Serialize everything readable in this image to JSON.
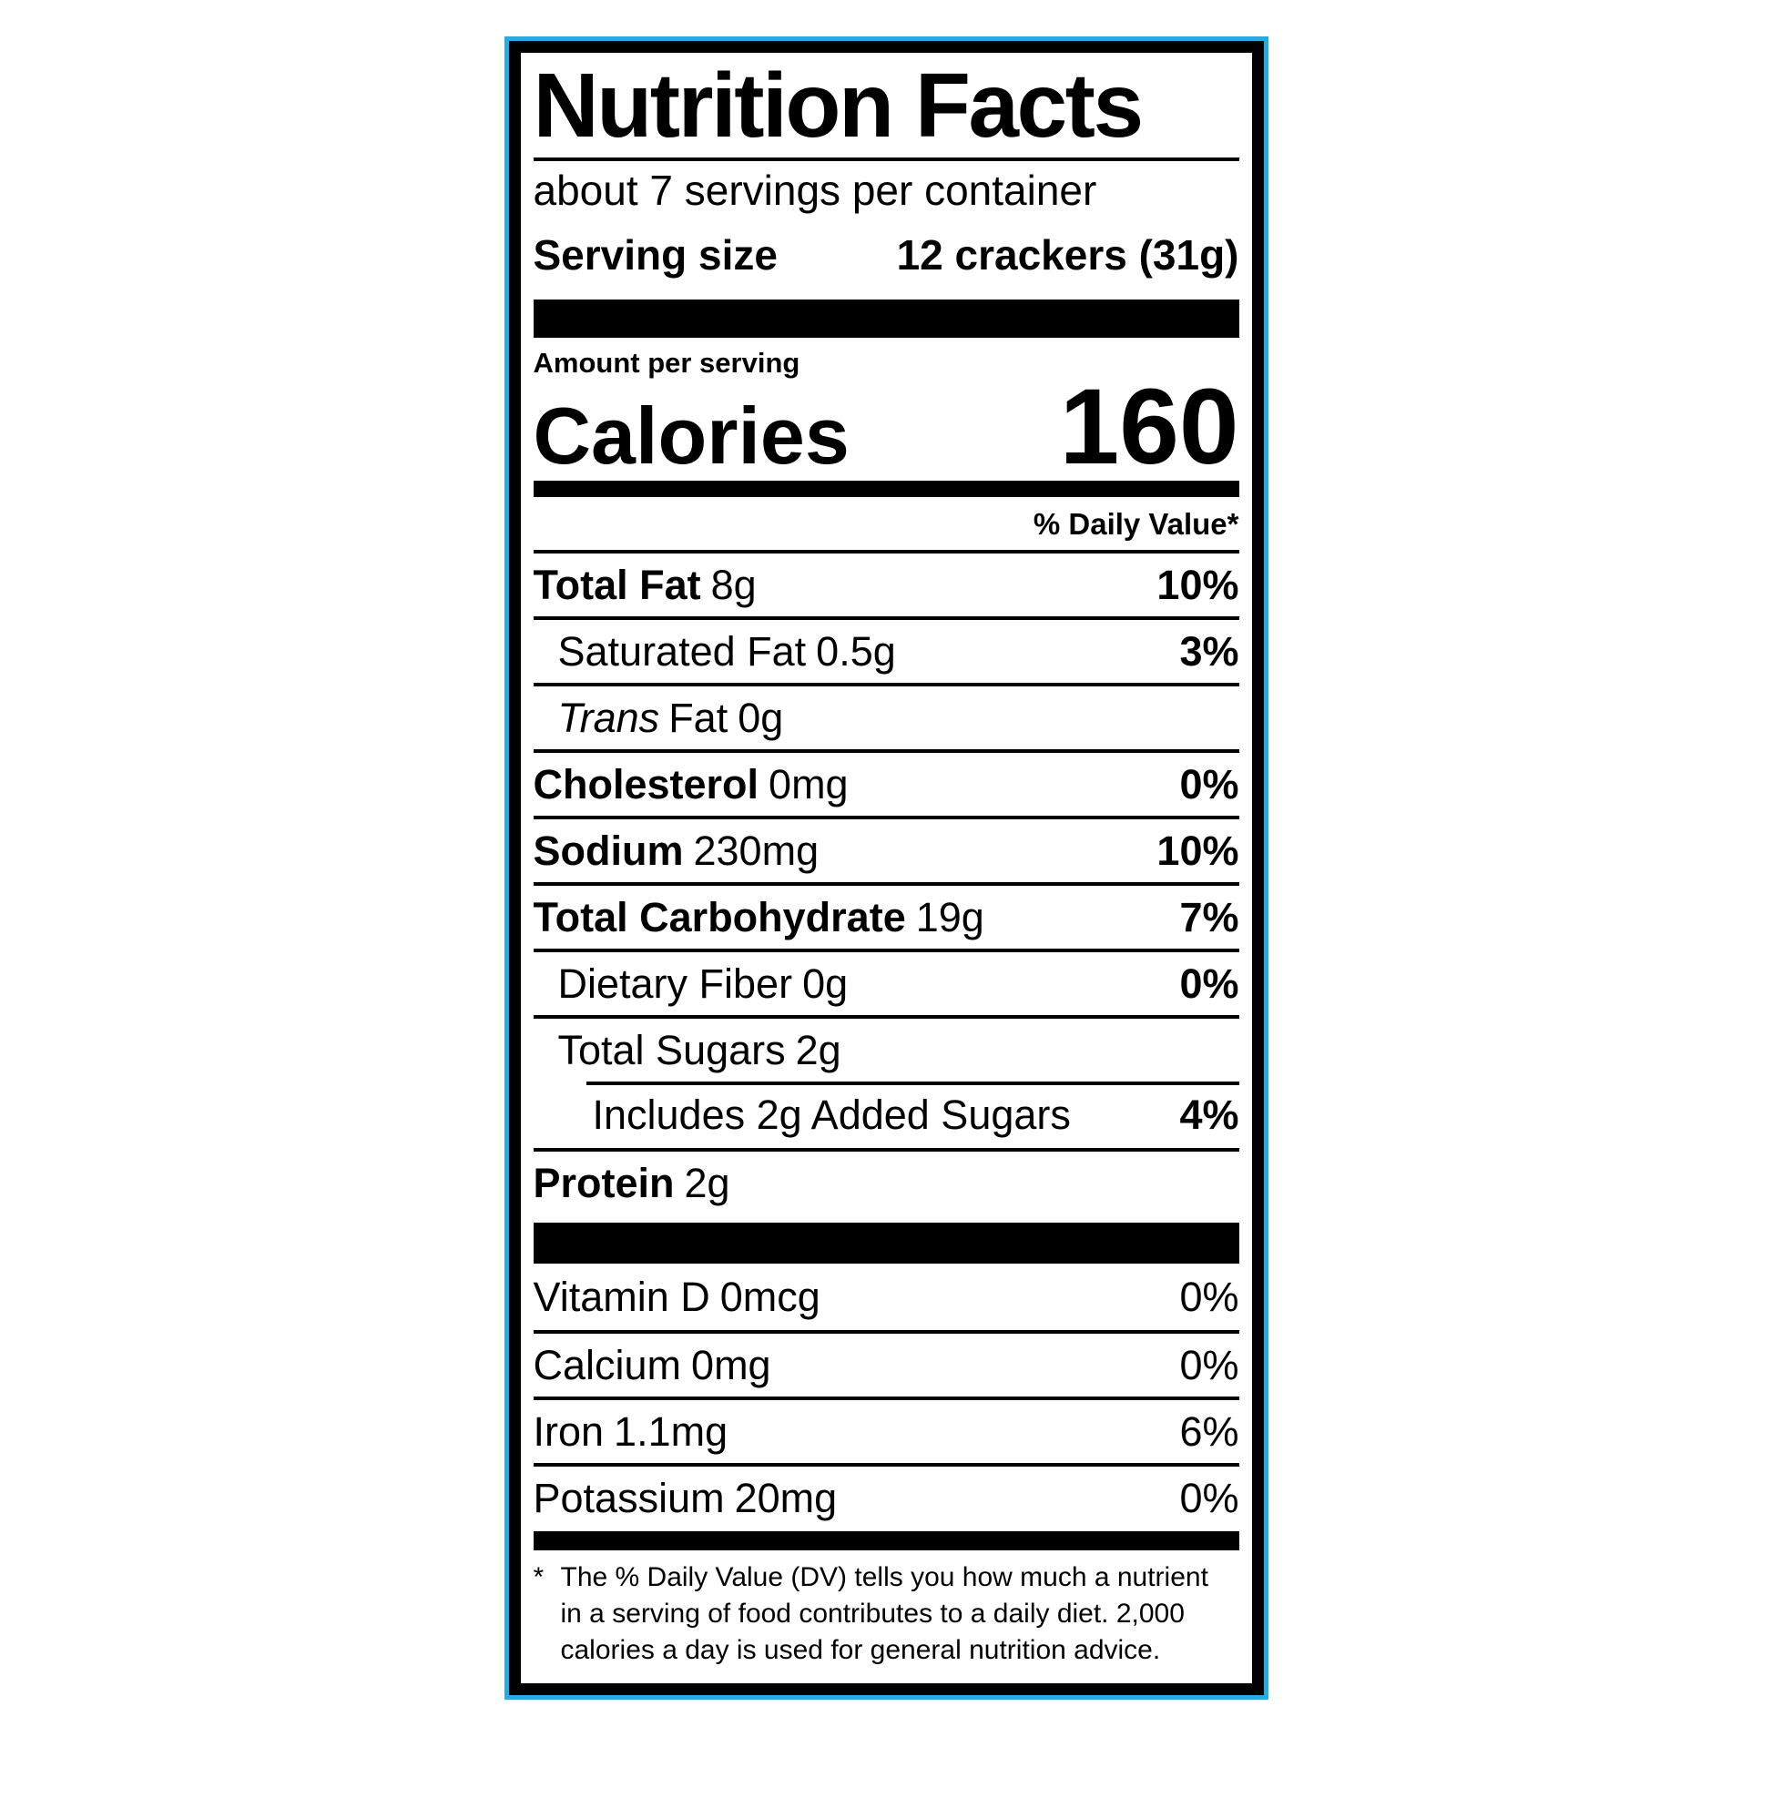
{
  "colors": {
    "accent_border": "#29ABE2",
    "text": "#000000",
    "background": "#FFFFFF"
  },
  "label": {
    "title": "Nutrition Facts",
    "servings_line": "about 7 servings per container",
    "serving_size": {
      "label": "Serving size",
      "value": "12 crackers (31g)"
    },
    "amount_heading": "Amount per serving",
    "calories": {
      "label": "Calories",
      "value": "160"
    },
    "dv_header": "% Daily Value*"
  },
  "rows": [
    {
      "name": "Total Fat",
      "amount": "8g",
      "dv": "10%"
    },
    {
      "name": "Saturated Fat",
      "amount": "0.5g",
      "dv": "3%"
    },
    {
      "name": "Trans",
      "rest": "Fat",
      "amount": "0g",
      "dv": ""
    },
    {
      "name": "Cholesterol",
      "amount": "0mg",
      "dv": "0%"
    },
    {
      "name": "Sodium",
      "amount": "230mg",
      "dv": "10%"
    },
    {
      "name": "Total Carbohydrate",
      "amount": "19g",
      "dv": "7%"
    },
    {
      "name": "Dietary Fiber",
      "amount": "0g",
      "dv": "0%"
    },
    {
      "name": "Total Sugars",
      "amount": "2g",
      "dv": ""
    },
    {
      "name": "Includes 2g Added Sugars",
      "amount": "",
      "dv": "4%"
    },
    {
      "name": "Protein",
      "amount": "2g",
      "dv": ""
    }
  ],
  "vitamins": [
    {
      "name": "Vitamin D",
      "amount": "0mcg",
      "dv": "0%"
    },
    {
      "name": "Calcium",
      "amount": "0mg",
      "dv": "0%"
    },
    {
      "name": "Iron",
      "amount": "1.1mg",
      "dv": "6%"
    },
    {
      "name": "Potassium",
      "amount": "20mg",
      "dv": "0%"
    }
  ],
  "footnote": {
    "marker": "*",
    "lines": [
      "The % Daily Value (DV) tells you how much a nutrient",
      "in a serving of food contributes to a daily diet. 2,000",
      "calories a day is used for general nutrition advice."
    ]
  }
}
